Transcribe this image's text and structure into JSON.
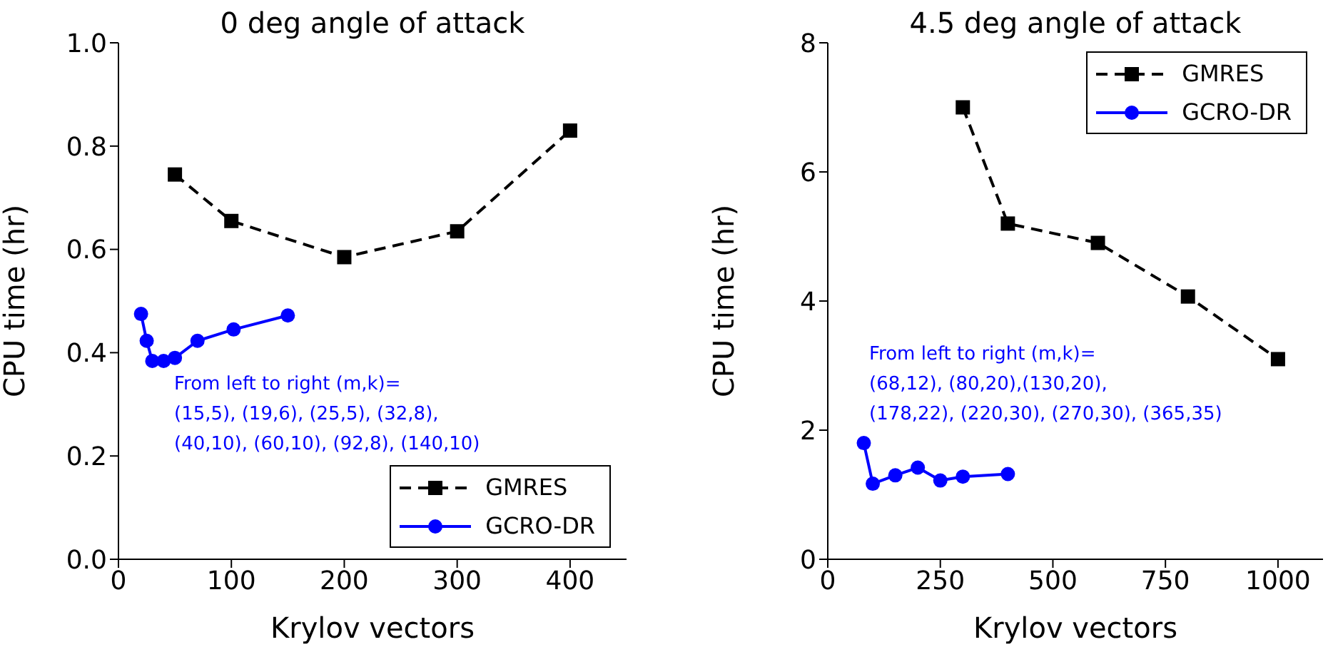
{
  "chart_data": [
    {
      "type": "line",
      "title": "0 deg angle of attack",
      "xlabel": "Krylov vectors",
      "ylabel": "CPU time (hr)",
      "xlim": [
        0,
        450
      ],
      "ylim": [
        0,
        1
      ],
      "xticks": [
        0,
        100,
        200,
        300,
        400
      ],
      "yticks": [
        {
          "value": 0,
          "label": "0.0"
        },
        {
          "value": 0.2,
          "label": "0.2"
        },
        {
          "value": 0.4,
          "label": "0.4"
        },
        {
          "value": 0.6,
          "label": "0.6"
        },
        {
          "value": 0.8,
          "label": "0.8"
        },
        {
          "value": 1,
          "label": "1.0"
        }
      ],
      "legend": "bottom right",
      "annotations": [
        "From left to right (m,k)=\n(15,5), (19,6), (25,5), (32,8),\n(40,10), (60,10), (92,8), (140,10)"
      ],
      "series": [
        {
          "name": "GMRES",
          "color": "#000000",
          "marker": "square",
          "line_style": "dashed",
          "x": [
            50,
            100,
            200,
            300,
            400
          ],
          "values": [
            0.745,
            0.655,
            0.585,
            0.635,
            0.83
          ]
        },
        {
          "name": "GCRO-DR",
          "color": "#0000ff",
          "marker": "circle",
          "line_style": "solid",
          "x": [
            20,
            25,
            30,
            40,
            50,
            70,
            102,
            150
          ],
          "values": [
            0.475,
            0.423,
            0.384,
            0.384,
            0.39,
            0.423,
            0.445,
            0.472
          ]
        }
      ]
    },
    {
      "type": "line",
      "title": "4.5 deg angle of attack",
      "xlabel": "Krylov vectors",
      "ylabel": "CPU time (hr)",
      "xlim": [
        0,
        1100
      ],
      "ylim": [
        0,
        8
      ],
      "xticks": [
        0,
        250,
        500,
        750,
        1000
      ],
      "yticks": [
        0,
        2,
        4,
        6,
        8
      ],
      "legend": "top right",
      "annotations": [
        "From left to right (m,k)=\n(68,12), (80,20),(130,20),\n(178,22), (220,30), (270,30), (365,35)"
      ],
      "series": [
        {
          "name": "GMRES",
          "color": "#000000",
          "marker": "square",
          "line_style": "dashed",
          "x": [
            300,
            400,
            600,
            800,
            1000
          ],
          "values": [
            7.0,
            5.2,
            4.9,
            4.07,
            3.1
          ]
        },
        {
          "name": "GCRO-DR",
          "color": "#0000ff",
          "marker": "circle",
          "line_style": "solid",
          "x": [
            80,
            100,
            150,
            200,
            250,
            300,
            400
          ],
          "values": [
            1.8,
            1.17,
            1.3,
            1.42,
            1.22,
            1.28,
            1.32
          ]
        }
      ]
    }
  ]
}
